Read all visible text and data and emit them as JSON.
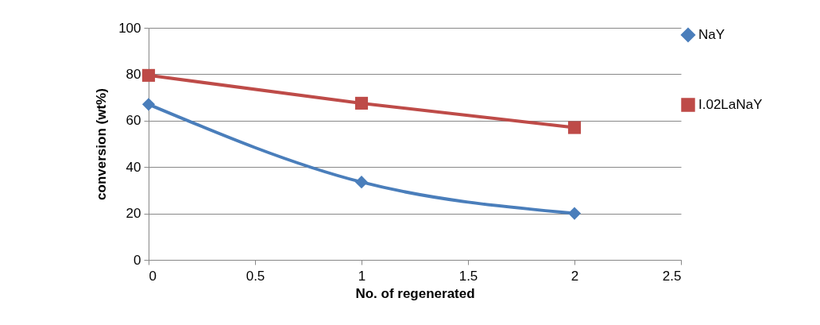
{
  "chart_data": {
    "type": "line",
    "xlabel": "No. of regenerated",
    "ylabel": "conversion (wt%)",
    "x": [
      0,
      1,
      2
    ],
    "series": [
      {
        "name": "NaY",
        "color": "#4a7ebb",
        "values": [
          67,
          33.5,
          20
        ],
        "marker": "diamond"
      },
      {
        "name": "I.02LaNaY",
        "color": "#be4b48",
        "values": [
          79.5,
          67.5,
          57
        ],
        "marker": "square"
      }
    ],
    "xlim": [
      0,
      2.5
    ],
    "xticks": [
      0,
      0.5,
      1,
      1.5,
      2,
      2.5
    ],
    "ylim": [
      0,
      100
    ],
    "yticks": [
      0,
      20,
      40,
      60,
      80,
      100
    ],
    "grid": "y",
    "legend": "right",
    "line_style": "solid"
  }
}
